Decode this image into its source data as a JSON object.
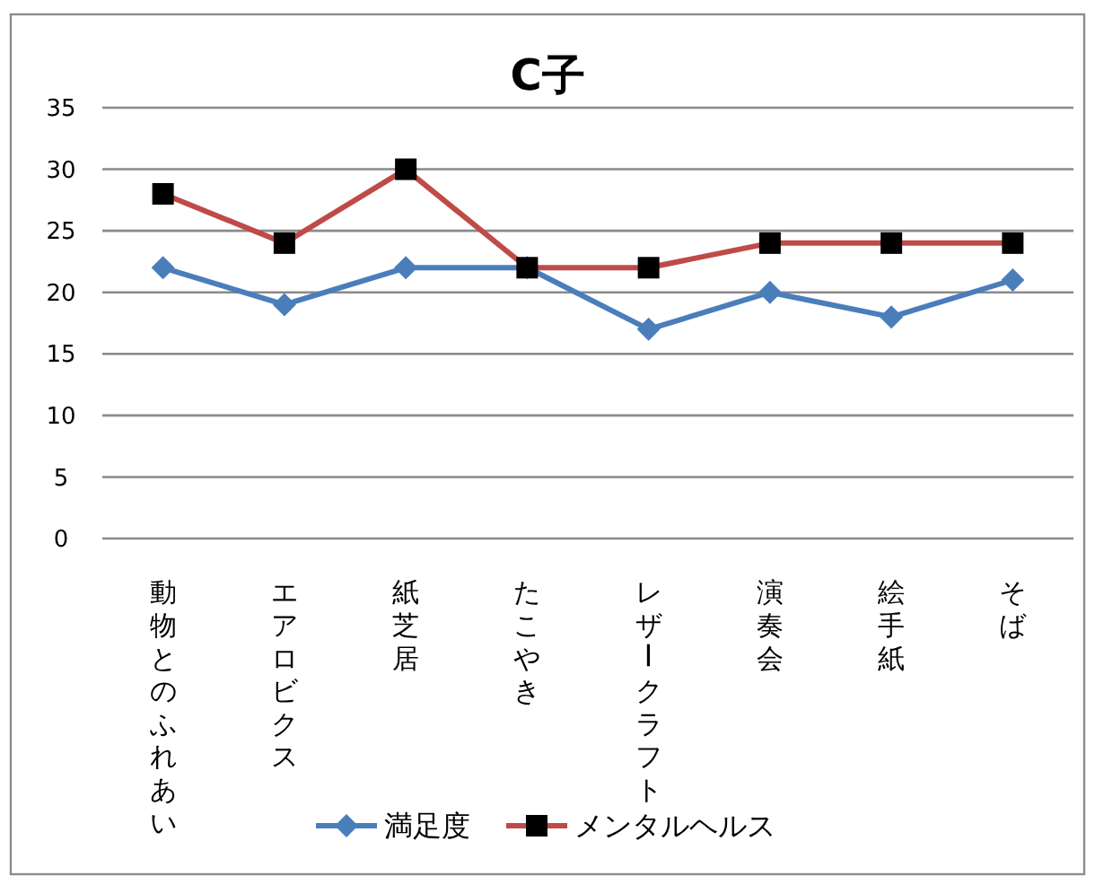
{
  "chart_data": {
    "type": "line",
    "title": "C子",
    "categories": [
      "動物とのふれあい",
      "エアロビクス",
      "紙芝居",
      "たこやき",
      "レザークラフト",
      "演奏会",
      "絵手紙",
      "そば"
    ],
    "series": [
      {
        "name": "満足度",
        "color": "#4a7ebb",
        "marker": "diamond",
        "values": [
          22,
          19,
          22,
          22,
          17,
          20,
          18,
          21
        ]
      },
      {
        "name": "メンタルヘルス",
        "color": "#be4b48",
        "marker": "square",
        "colors": [
          "#000000",
          "#000000",
          "#000000",
          "#000000",
          "#000000",
          "#000000",
          "#000000",
          "#000000"
        ],
        "values": [
          28,
          24,
          30,
          22,
          22,
          24,
          24,
          24
        ]
      }
    ],
    "ylim": [
      0,
      35
    ],
    "yticks": [
      0,
      5,
      10,
      15,
      20,
      25,
      30,
      35
    ],
    "grid": "y",
    "legend": "bottom"
  }
}
